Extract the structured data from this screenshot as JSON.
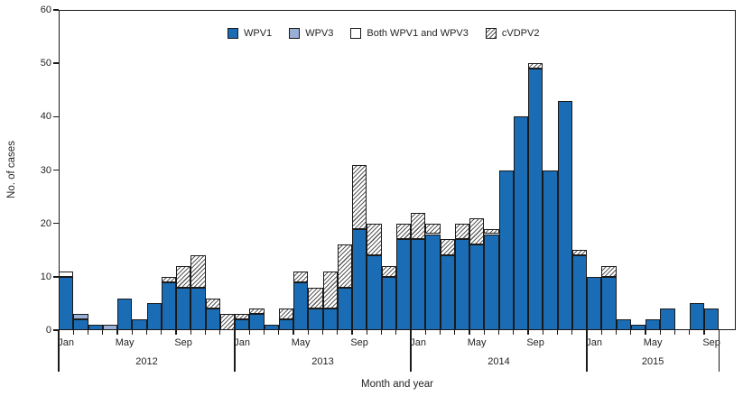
{
  "figure": {
    "y_axis_title": "No. of cases",
    "x_axis_title": "Month and year",
    "y_ticks": [
      0,
      10,
      20,
      30,
      40,
      50,
      60
    ],
    "month_labels": [
      "Jan",
      "May",
      "Sep"
    ],
    "year_labels": [
      "2012",
      "2013",
      "2014",
      "2015"
    ]
  },
  "legend": [
    {
      "label": "WPV1",
      "swatch": "wpv1-swatch",
      "key": "wpv1"
    },
    {
      "label": "WPV3",
      "swatch": "wpv3-swatch",
      "key": "wpv3"
    },
    {
      "label": "Both WPV1 and WPV3",
      "swatch": "both-swatch",
      "key": "both"
    },
    {
      "label": "cVDPV2",
      "swatch": "cvdpv2-swatch",
      "key": "cvdpv2"
    }
  ],
  "colors": {
    "wpv1": "#1a6db5",
    "wpv3": "#9aafd6",
    "both": "#ffffff",
    "cvdpv2_bg": "#ffffff",
    "cvdpv2_line": "#5a5a5a",
    "border": "#1a1a1a",
    "text": "#231f20"
  },
  "chart_data": {
    "type": "bar",
    "stacked": true,
    "title": "",
    "xlabel": "Month and year",
    "ylabel": "No. of cases",
    "ylim": [
      0,
      60
    ],
    "grid": false,
    "legend_position": "top-center",
    "stack_order_bottom_to_top": [
      "wpv1",
      "wpv3",
      "both",
      "cvdpv2"
    ],
    "columns": [
      "month",
      "wpv1",
      "wpv3",
      "both",
      "cvdpv2"
    ],
    "rows": [
      [
        "Jan 2012",
        10,
        0,
        1,
        0
      ],
      [
        "Feb 2012",
        2,
        1,
        0,
        0
      ],
      [
        "Mar 2012",
        1,
        0,
        0,
        0
      ],
      [
        "Apr 2012",
        0,
        1,
        0,
        0
      ],
      [
        "May 2012",
        6,
        0,
        0,
        0
      ],
      [
        "Jun 2012",
        2,
        0,
        0,
        0
      ],
      [
        "Jul 2012",
        5,
        0,
        0,
        0
      ],
      [
        "Aug 2012",
        9,
        0,
        0,
        1
      ],
      [
        "Sep 2012",
        8,
        0,
        0,
        4
      ],
      [
        "Oct 2012",
        8,
        0,
        0,
        6
      ],
      [
        "Nov 2012",
        4,
        0,
        0,
        2
      ],
      [
        "Dec 2012",
        0,
        0,
        0,
        3
      ],
      [
        "Jan 2013",
        2,
        0,
        0,
        1
      ],
      [
        "Feb 2013",
        3,
        0,
        0,
        1
      ],
      [
        "Mar 2013",
        1,
        0,
        0,
        0
      ],
      [
        "Apr 2013",
        2,
        0,
        0,
        2
      ],
      [
        "May 2013",
        9,
        0,
        0,
        2
      ],
      [
        "Jun 2013",
        4,
        0,
        0,
        4
      ],
      [
        "Jul 2013",
        4,
        0,
        0,
        7
      ],
      [
        "Aug 2013",
        8,
        0,
        0,
        8
      ],
      [
        "Sep 2013",
        19,
        0,
        0,
        12
      ],
      [
        "Oct 2013",
        14,
        0,
        0,
        6
      ],
      [
        "Nov 2013",
        10,
        0,
        0,
        2
      ],
      [
        "Dec 2013",
        17,
        0,
        0,
        3
      ],
      [
        "Jan 2014",
        17,
        0,
        0,
        5
      ],
      [
        "Feb 2014",
        18,
        0,
        0,
        2
      ],
      [
        "Mar 2014",
        14,
        0,
        0,
        3
      ],
      [
        "Apr 2014",
        17,
        0,
        0,
        3
      ],
      [
        "May 2014",
        16,
        0,
        0,
        5
      ],
      [
        "Jun 2014",
        18,
        0,
        0,
        1
      ],
      [
        "Jul 2014",
        30,
        0,
        0,
        0
      ],
      [
        "Aug 2014",
        40,
        0,
        0,
        0
      ],
      [
        "Sep 2014",
        49,
        0,
        0,
        1
      ],
      [
        "Oct 2014",
        30,
        0,
        0,
        0
      ],
      [
        "Nov 2014",
        43,
        0,
        0,
        0
      ],
      [
        "Dec 2014",
        14,
        0,
        0,
        1
      ],
      [
        "Jan 2015",
        10,
        0,
        0,
        0
      ],
      [
        "Feb 2015",
        10,
        0,
        0,
        2
      ],
      [
        "Mar 2015",
        2,
        0,
        0,
        0
      ],
      [
        "Apr 2015",
        1,
        0,
        0,
        0
      ],
      [
        "May 2015",
        2,
        0,
        0,
        0
      ],
      [
        "Jun 2015",
        4,
        0,
        0,
        0
      ],
      [
        "Jul 2015",
        0,
        0,
        0,
        0
      ],
      [
        "Aug 2015",
        5,
        0,
        0,
        0
      ],
      [
        "Sep 2015",
        4,
        0,
        0,
        0
      ]
    ]
  }
}
